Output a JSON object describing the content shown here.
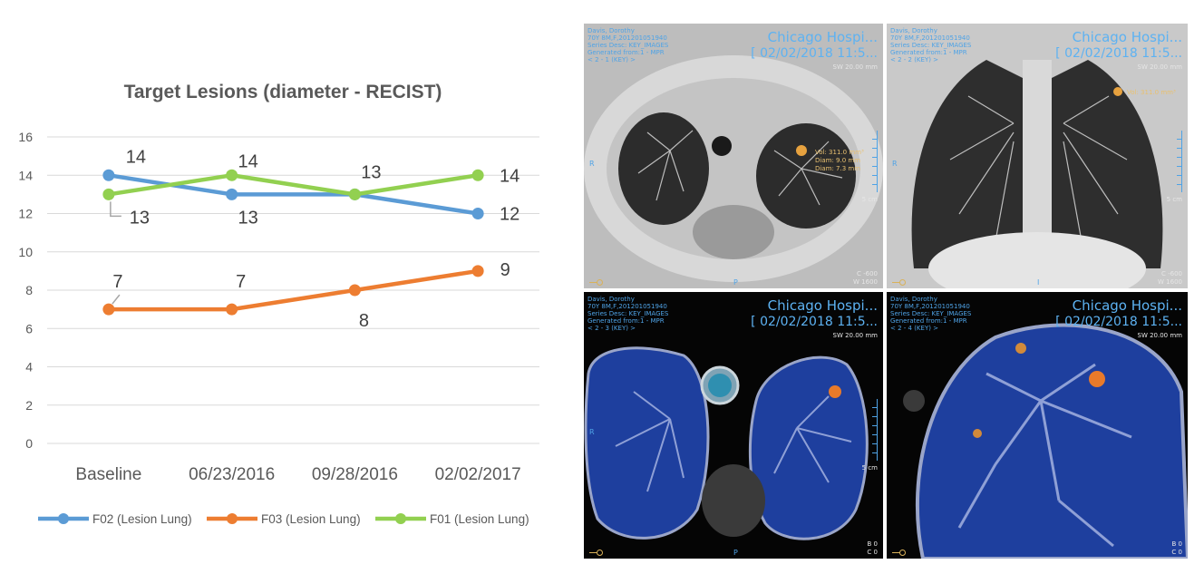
{
  "chart_data": {
    "type": "line",
    "title": "Target Lesions (diameter - RECIST)",
    "categories": [
      "Baseline",
      "06/23/2016",
      "09/28/2016",
      "02/02/2017"
    ],
    "ylim": [
      0,
      16
    ],
    "yticks": [
      0,
      2,
      4,
      6,
      8,
      10,
      12,
      14,
      16
    ],
    "grid": true,
    "legend_position": "bottom",
    "series": [
      {
        "name": "F02 (Lesion Lung)",
        "color": "#5b9bd5",
        "values": [
          14,
          13,
          13,
          12
        ],
        "labels": [
          "14",
          "13",
          "",
          "12"
        ]
      },
      {
        "name": "F03 (Lesion Lung)",
        "color": "#ed7d31",
        "values": [
          7,
          7,
          8,
          9
        ],
        "labels": [
          "7",
          "7",
          "8",
          "9"
        ]
      },
      {
        "name": "F01 (Lesion Lung)",
        "color": "#92d050",
        "values": [
          13,
          14,
          13,
          14
        ],
        "labels": [
          "13",
          "14",
          "13",
          "14"
        ]
      }
    ]
  },
  "viewers": [
    {
      "patient": "Davis, Dorothy",
      "info": "70Y 8M,F,201201051940",
      "series": "Series Desc: KEY_IMAGES",
      "generated": "Generated from:1 - MPR",
      "nav": "< 2 - 1 (KEY) >",
      "hospital": "Chicago Hospi...",
      "date": "[ 02/02/2018 11:5...",
      "sw": "SW 20.00 mm",
      "left_marker": "R",
      "bottom_marker": "P",
      "scale": "5 cm",
      "wl": "C -600",
      "ww": "W 1600",
      "meas": [
        "Vol: 311.0 mm³",
        "Diam: 9.0 mm",
        "Diam: 7.3 mm"
      ]
    },
    {
      "patient": "Davis, Dorothy",
      "info": "70Y 8M,F,201201051940",
      "series": "Series Desc: KEY_IMAGES",
      "generated": "Generated from:1 - MPR",
      "nav": "< 2 - 2 (KEY) >",
      "hospital": "Chicago Hospi...",
      "date": "[ 02/02/2018 11:5...",
      "sw": "SW 20.00 mm",
      "left_marker": "R",
      "bottom_marker": "I",
      "scale": "5 cm",
      "wl": "C -600",
      "ww": "W 1600",
      "meas": [
        "Vol: 311.0 mm³"
      ]
    },
    {
      "patient": "Davis, Dorothy",
      "info": "70Y 8M,F,201201051940",
      "series": "Series Desc: KEY_IMAGES",
      "generated": "Generated from:1 - MPR",
      "nav": "< 2 - 3 (KEY) >",
      "hospital": "Chicago Hospi...",
      "date": "[ 02/02/2018 11:5...",
      "sw": "SW 20.00 mm",
      "left_marker": "R",
      "bottom_marker": "P",
      "scale": "5 cm",
      "wl": "B 0",
      "ww": "C 0",
      "meas": []
    },
    {
      "patient": "Davis, Dorothy",
      "info": "70Y 8M,F,201201051940",
      "series": "Series Desc: KEY_IMAGES",
      "generated": "Generated from:1 - MPR",
      "nav": "< 2 - 4 (KEY) >",
      "hospital": "Chicago Hospi...",
      "date": "[ 02/02/2018 11:5...",
      "sw": "SW 20.00 mm",
      "left_marker": "",
      "bottom_marker": "",
      "scale": "",
      "wl": "B 0",
      "ww": "C 0",
      "meas": []
    }
  ]
}
